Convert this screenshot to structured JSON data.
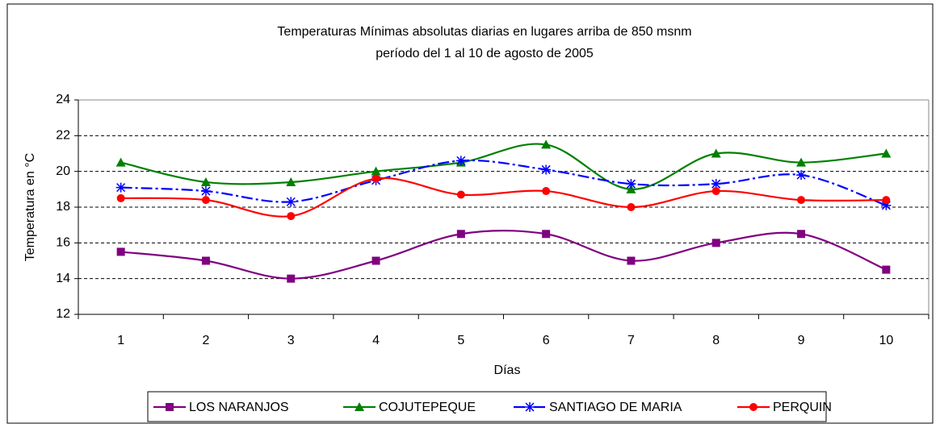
{
  "chart_data": {
    "type": "line",
    "title": "Temperaturas Mínimas absolutas diarias en lugares arriba de 850 msnm",
    "subtitle": "período del 1 al 10 de agosto de 2005",
    "x_label": "Días",
    "y_label": "Temperatura en °C",
    "categories": [
      "1",
      "2",
      "3",
      "4",
      "5",
      "6",
      "7",
      "8",
      "9",
      "10"
    ],
    "series": [
      {
        "name": "LOS NARANJOS",
        "color": "#800080",
        "marker": "square",
        "values": [
          15.5,
          15,
          14,
          15,
          16.5,
          16.5,
          15,
          16,
          16.5,
          14.5
        ]
      },
      {
        "name": "COJUTEPEQUE",
        "color": "#008000",
        "marker": "triangle",
        "values": [
          20.5,
          19.4,
          19.4,
          20,
          20.5,
          21.5,
          19,
          21,
          20.5,
          21
        ]
      },
      {
        "name": "SANTIAGO DE MARIA",
        "color": "#0000ff",
        "marker": "asterisk",
        "dash": "dash-dot",
        "values": [
          19.1,
          18.9,
          18.3,
          19.5,
          20.6,
          20.1,
          19.3,
          19.3,
          19.8,
          18.1
        ]
      },
      {
        "name": "PERQUIN",
        "color": "#ff0000",
        "marker": "circle",
        "values": [
          18.5,
          18.4,
          17.5,
          19.6,
          18.7,
          18.9,
          18,
          18.9,
          18.4,
          18.4
        ]
      }
    ],
    "ylim": [
      12,
      24
    ],
    "yticks": [
      12,
      14,
      16,
      18,
      20,
      22,
      24
    ],
    "grid": true,
    "smooth": true,
    "legend": "bottom"
  }
}
